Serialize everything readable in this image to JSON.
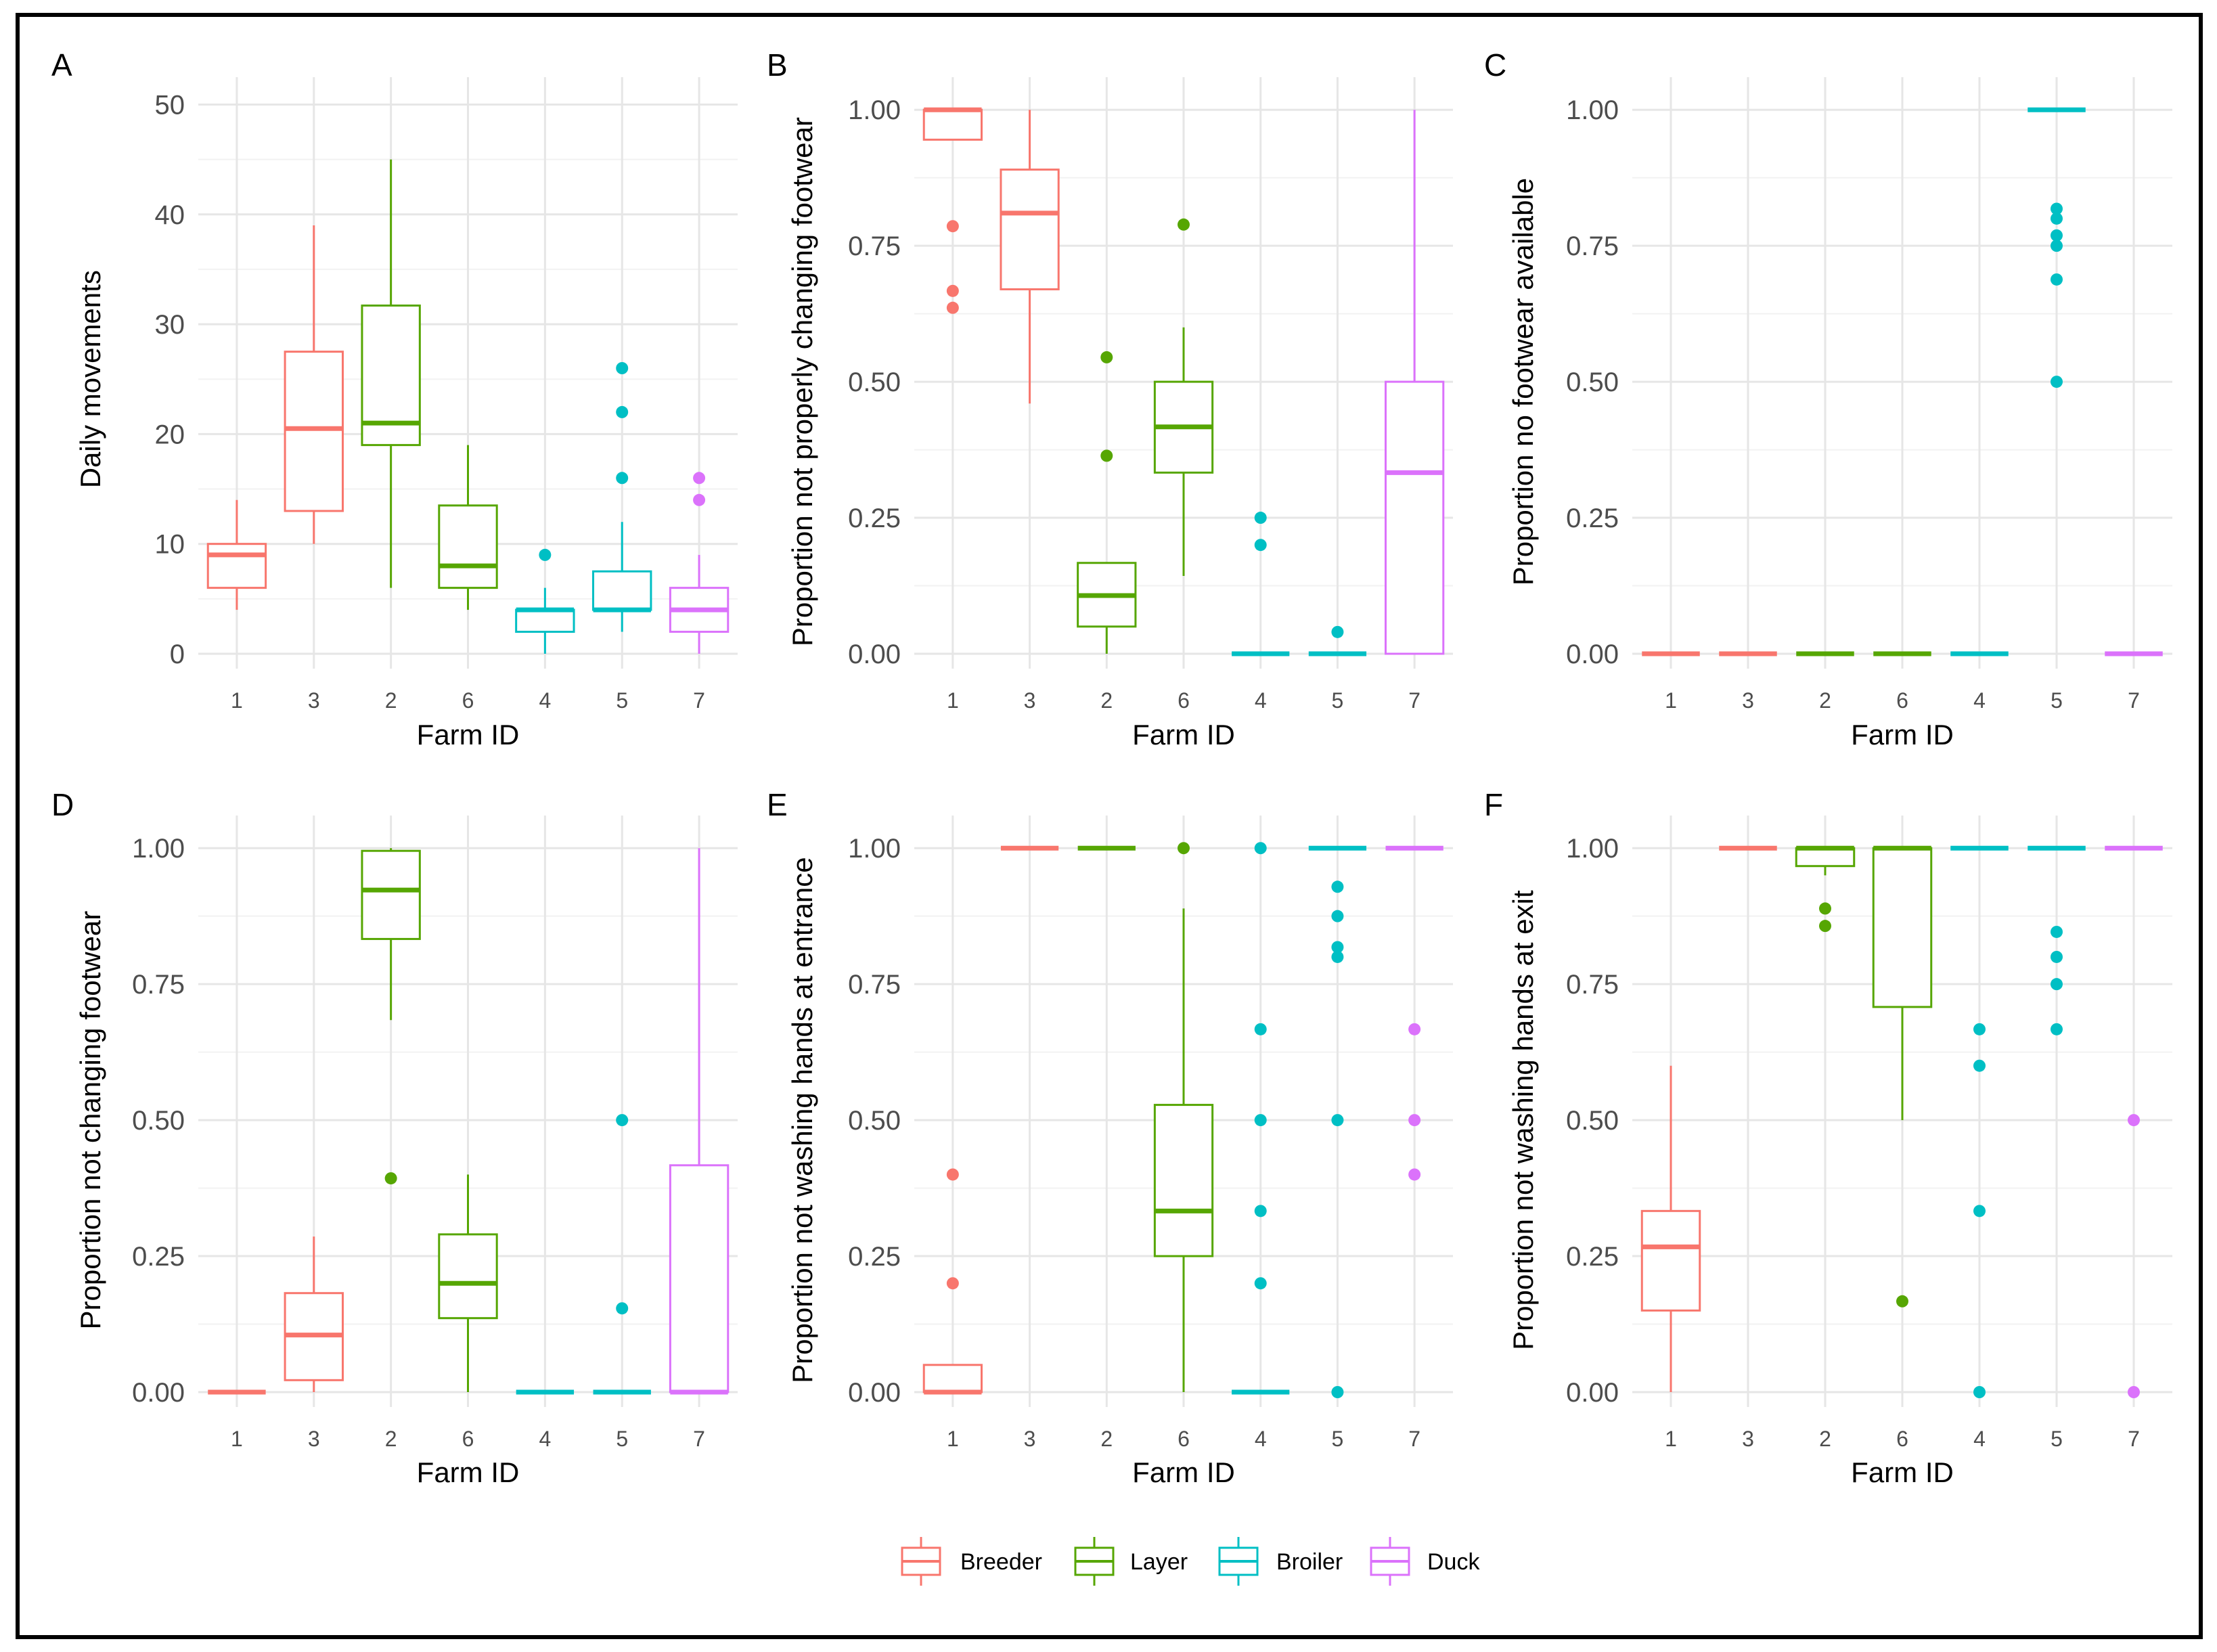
{
  "chart_data": {
    "type": "boxplot",
    "x_categories": [
      "1",
      "3",
      "2",
      "6",
      "4",
      "5",
      "7"
    ],
    "category_group": {
      "1": "Breeder",
      "3": "Breeder",
      "2": "Layer",
      "6": "Layer",
      "4": "Broiler",
      "5": "Broiler",
      "7": "Duck"
    },
    "legend": [
      {
        "name": "Breeder",
        "color": "#F8766D"
      },
      {
        "name": "Layer",
        "color": "#56A603"
      },
      {
        "name": "Broiler",
        "color": "#00BFC4"
      },
      {
        "name": "Duck",
        "color": "#DB72FB"
      }
    ],
    "panels": [
      {
        "letter": "A",
        "xlabel": "Farm ID",
        "ylabel": "Daily movements",
        "ylim": [
          0,
          52
        ],
        "yticks": [
          0,
          10,
          20,
          30,
          40,
          50
        ],
        "ytick_labels": [
          "0",
          "10",
          "20",
          "30",
          "40",
          "50"
        ],
        "boxes": [
          {
            "farm": "1",
            "q1": 6,
            "median": 9,
            "q3": 10,
            "whisker_low": 4,
            "whisker_high": 14,
            "outliers": []
          },
          {
            "farm": "3",
            "q1": 13,
            "median": 20.5,
            "q3": 27.5,
            "whisker_low": 10,
            "whisker_high": 39,
            "outliers": []
          },
          {
            "farm": "2",
            "q1": 19,
            "median": 21,
            "q3": 31.7,
            "whisker_low": 6,
            "whisker_high": 45,
            "outliers": []
          },
          {
            "farm": "6",
            "q1": 6,
            "median": 8,
            "q3": 13.5,
            "whisker_low": 4,
            "whisker_high": 19,
            "outliers": []
          },
          {
            "farm": "4",
            "q1": 2,
            "median": 4,
            "q3": 4,
            "whisker_low": 0,
            "whisker_high": 6,
            "outliers": [
              9
            ]
          },
          {
            "farm": "5",
            "q1": 4,
            "median": 4,
            "q3": 7.5,
            "whisker_low": 2,
            "whisker_high": 12,
            "outliers": [
              16,
              22,
              26
            ]
          },
          {
            "farm": "7",
            "q1": 2,
            "median": 4,
            "q3": 6,
            "whisker_low": 0,
            "whisker_high": 9,
            "outliers": [
              14,
              16
            ]
          }
        ]
      },
      {
        "letter": "B",
        "xlabel": "Farm ID",
        "ylabel": "Proportion not properly changing footwear",
        "ylim": [
          0,
          1.05
        ],
        "yticks": [
          0,
          0.25,
          0.5,
          0.75,
          1
        ],
        "ytick_labels": [
          "0.00",
          "0.25",
          "0.50",
          "0.75",
          "1.00"
        ],
        "boxes": [
          {
            "farm": "1",
            "q1": 0.945,
            "median": 1,
            "q3": 1,
            "whisker_low": 0.945,
            "whisker_high": 1,
            "outliers": [
              0.636,
              0.667,
              0.786
            ]
          },
          {
            "farm": "3",
            "q1": 0.67,
            "median": 0.81,
            "q3": 0.89,
            "whisker_low": 0.46,
            "whisker_high": 1,
            "outliers": []
          },
          {
            "farm": "2",
            "q1": 0.05,
            "median": 0.107,
            "q3": 0.167,
            "whisker_low": 0,
            "whisker_high": 0.167,
            "outliers": [
              0.364,
              0.545
            ]
          },
          {
            "farm": "6",
            "q1": 0.333,
            "median": 0.417,
            "q3": 0.5,
            "whisker_low": 0.143,
            "whisker_high": 0.6,
            "outliers": [
              0.789
            ]
          },
          {
            "farm": "4",
            "q1": 0,
            "median": 0,
            "q3": 0,
            "whisker_low": 0,
            "whisker_high": 0,
            "outliers": [
              0.2,
              0.25
            ]
          },
          {
            "farm": "5",
            "q1": 0,
            "median": 0,
            "q3": 0,
            "whisker_low": 0,
            "whisker_high": 0,
            "outliers": [
              0.04
            ]
          },
          {
            "farm": "7",
            "q1": 0,
            "median": 0.333,
            "q3": 0.5,
            "whisker_low": 0,
            "whisker_high": 1,
            "outliers": []
          }
        ]
      },
      {
        "letter": "C",
        "xlabel": "Farm ID",
        "ylabel": "Proportion no footwear available",
        "ylim": [
          0,
          1.05
        ],
        "yticks": [
          0,
          0.25,
          0.5,
          0.75,
          1
        ],
        "ytick_labels": [
          "0.00",
          "0.25",
          "0.50",
          "0.75",
          "1.00"
        ],
        "boxes": [
          {
            "farm": "1",
            "q1": 0,
            "median": 0,
            "q3": 0,
            "whisker_low": 0,
            "whisker_high": 0,
            "outliers": []
          },
          {
            "farm": "3",
            "q1": 0,
            "median": 0,
            "q3": 0,
            "whisker_low": 0,
            "whisker_high": 0,
            "outliers": []
          },
          {
            "farm": "2",
            "q1": 0,
            "median": 0,
            "q3": 0,
            "whisker_low": 0,
            "whisker_high": 0,
            "outliers": []
          },
          {
            "farm": "6",
            "q1": 0,
            "median": 0,
            "q3": 0,
            "whisker_low": 0,
            "whisker_high": 0,
            "outliers": []
          },
          {
            "farm": "4",
            "q1": 0,
            "median": 0,
            "q3": 0,
            "whisker_low": 0,
            "whisker_high": 0,
            "outliers": []
          },
          {
            "farm": "5",
            "q1": 1,
            "median": 1,
            "q3": 1,
            "whisker_low": 1,
            "whisker_high": 1,
            "outliers": [
              0.5,
              0.688,
              0.75,
              0.769,
              0.8,
              0.818
            ]
          },
          {
            "farm": "7",
            "q1": 0,
            "median": 0,
            "q3": 0,
            "whisker_low": 0,
            "whisker_high": 0,
            "outliers": []
          }
        ]
      },
      {
        "letter": "D",
        "xlabel": "Farm ID",
        "ylabel": "Proportion not changing footwear",
        "ylim": [
          0,
          1.05
        ],
        "yticks": [
          0,
          0.25,
          0.5,
          0.75,
          1
        ],
        "ytick_labels": [
          "0.00",
          "0.25",
          "0.50",
          "0.75",
          "1.00"
        ],
        "boxes": [
          {
            "farm": "1",
            "q1": 0,
            "median": 0,
            "q3": 0,
            "whisker_low": 0,
            "whisker_high": 0,
            "outliers": []
          },
          {
            "farm": "3",
            "q1": 0.022,
            "median": 0.105,
            "q3": 0.182,
            "whisker_low": 0,
            "whisker_high": 0.286,
            "outliers": []
          },
          {
            "farm": "2",
            "q1": 0.833,
            "median": 0.923,
            "q3": 0.995,
            "whisker_low": 0.684,
            "whisker_high": 1,
            "outliers": [
              0.393
            ]
          },
          {
            "farm": "6",
            "q1": 0.136,
            "median": 0.2,
            "q3": 0.29,
            "whisker_low": 0,
            "whisker_high": 0.4,
            "outliers": []
          },
          {
            "farm": "4",
            "q1": 0,
            "median": 0,
            "q3": 0,
            "whisker_low": 0,
            "whisker_high": 0,
            "outliers": []
          },
          {
            "farm": "5",
            "q1": 0,
            "median": 0,
            "q3": 0,
            "whisker_low": 0,
            "whisker_high": 0,
            "outliers": [
              0.154,
              0.5
            ]
          },
          {
            "farm": "7",
            "q1": 0,
            "median": 0,
            "q3": 0.417,
            "whisker_low": 0,
            "whisker_high": 1,
            "outliers": []
          }
        ]
      },
      {
        "letter": "E",
        "xlabel": "Farm ID",
        "ylabel": "Proportion not washing hands at entrance",
        "ylim": [
          0,
          1.05
        ],
        "yticks": [
          0,
          0.25,
          0.5,
          0.75,
          1
        ],
        "ytick_labels": [
          "0.00",
          "0.25",
          "0.50",
          "0.75",
          "1.00"
        ],
        "boxes": [
          {
            "farm": "1",
            "q1": 0,
            "median": 0,
            "q3": 0.05,
            "whisker_low": 0,
            "whisker_high": 0.05,
            "outliers": [
              0.2,
              0.4
            ]
          },
          {
            "farm": "3",
            "q1": 1,
            "median": 1,
            "q3": 1,
            "whisker_low": 1,
            "whisker_high": 1,
            "outliers": []
          },
          {
            "farm": "2",
            "q1": 1,
            "median": 1,
            "q3": 1,
            "whisker_low": 1,
            "whisker_high": 1,
            "outliers": []
          },
          {
            "farm": "6",
            "q1": 0.25,
            "median": 0.333,
            "q3": 0.528,
            "whisker_low": 0,
            "whisker_high": 0.889,
            "outliers": [
              1
            ]
          },
          {
            "farm": "4",
            "q1": 0,
            "median": 0,
            "q3": 0,
            "whisker_low": 0,
            "whisker_high": 0,
            "outliers": [
              0.2,
              0.333,
              0.5,
              0.667,
              1
            ]
          },
          {
            "farm": "5",
            "q1": 1,
            "median": 1,
            "q3": 1,
            "whisker_low": 1,
            "whisker_high": 1,
            "outliers": [
              0,
              0.5,
              0.8,
              0.818,
              0.875,
              0.929
            ]
          },
          {
            "farm": "7",
            "q1": 1,
            "median": 1,
            "q3": 1,
            "whisker_low": 1,
            "whisker_high": 1,
            "outliers": [
              0.4,
              0.5,
              0.667
            ]
          }
        ]
      },
      {
        "letter": "F",
        "xlabel": "Farm ID",
        "ylabel": "Proportion not washing hands at exit",
        "ylim": [
          0,
          1.05
        ],
        "yticks": [
          0,
          0.25,
          0.5,
          0.75,
          1
        ],
        "ytick_labels": [
          "0.00",
          "0.25",
          "0.50",
          "0.75",
          "1.00"
        ],
        "boxes": [
          {
            "farm": "1",
            "q1": 0.15,
            "median": 0.267,
            "q3": 0.333,
            "whisker_low": 0,
            "whisker_high": 0.6,
            "outliers": []
          },
          {
            "farm": "3",
            "q1": 1,
            "median": 1,
            "q3": 1,
            "whisker_low": 1,
            "whisker_high": 1,
            "outliers": []
          },
          {
            "farm": "2",
            "q1": 0.967,
            "median": 1,
            "q3": 1,
            "whisker_low": 0.95,
            "whisker_high": 1,
            "outliers": [
              0.857,
              0.889
            ]
          },
          {
            "farm": "6",
            "q1": 0.708,
            "median": 1,
            "q3": 1,
            "whisker_low": 0.5,
            "whisker_high": 1,
            "outliers": [
              0.167
            ]
          },
          {
            "farm": "4",
            "q1": 1,
            "median": 1,
            "q3": 1,
            "whisker_low": 1,
            "whisker_high": 1,
            "outliers": [
              0,
              0.333,
              0.6,
              0.667
            ]
          },
          {
            "farm": "5",
            "q1": 1,
            "median": 1,
            "q3": 1,
            "whisker_low": 1,
            "whisker_high": 1,
            "outliers": [
              0.667,
              0.75,
              0.8,
              0.846
            ]
          },
          {
            "farm": "7",
            "q1": 1,
            "median": 1,
            "q3": 1,
            "whisker_low": 1,
            "whisker_high": 1,
            "outliers": [
              0,
              0.5
            ]
          }
        ]
      }
    ]
  }
}
